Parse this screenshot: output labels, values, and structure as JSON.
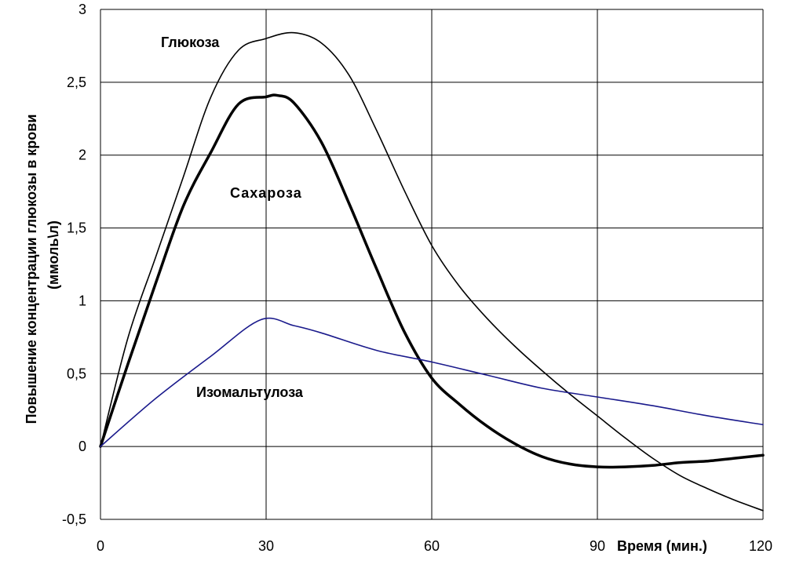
{
  "chart_data": {
    "type": "line",
    "title": "",
    "xlabel": "Время (мин.)",
    "ylabel_line1": "Повышение концентрации глюкозы  в крови",
    "ylabel_line2": "(ммоль\\л)",
    "xlim": [
      0,
      120
    ],
    "ylim": [
      -0.5,
      3
    ],
    "x_ticks": [
      "0",
      "30",
      "60",
      "90"
    ],
    "x_tick_values": [
      0,
      30,
      60,
      90
    ],
    "x_last_tick": "120",
    "y_ticks": [
      "-0,5",
      "0",
      "0,5",
      "1",
      "1,5",
      "2",
      "2,5",
      "3"
    ],
    "y_tick_values": [
      -0.5,
      0,
      0.5,
      1,
      1.5,
      2,
      2.5,
      3
    ],
    "grid": true,
    "series": [
      {
        "name": "Глюкоза",
        "color": "#000000",
        "weight": "thin",
        "x": [
          0,
          5,
          10,
          15,
          20,
          25,
          30,
          35,
          40,
          45,
          50,
          55,
          60,
          65,
          70,
          75,
          80,
          85,
          90,
          95,
          100,
          105,
          110,
          115,
          120
        ],
        "values": [
          0,
          0.75,
          1.3,
          1.85,
          2.4,
          2.72,
          2.8,
          2.84,
          2.77,
          2.55,
          2.17,
          1.76,
          1.38,
          1.1,
          0.88,
          0.69,
          0.52,
          0.36,
          0.21,
          0.06,
          -0.08,
          -0.2,
          -0.29,
          -0.37,
          -0.44
        ]
      },
      {
        "name": "Сахароза",
        "color": "#000000",
        "weight": "thick",
        "x": [
          0,
          5,
          10,
          15,
          20,
          25,
          30,
          32,
          35,
          40,
          45,
          50,
          55,
          60,
          65,
          70,
          75,
          80,
          85,
          90,
          95,
          100,
          105,
          110,
          115,
          120
        ],
        "values": [
          0,
          0.57,
          1.12,
          1.65,
          2.02,
          2.35,
          2.4,
          2.41,
          2.36,
          2.09,
          1.67,
          1.22,
          0.79,
          0.47,
          0.29,
          0.14,
          0.02,
          -0.07,
          -0.12,
          -0.14,
          -0.14,
          -0.13,
          -0.11,
          -0.1,
          -0.08,
          -0.06
        ]
      },
      {
        "name": "Изомальтулоза",
        "color": "#1a1a8c",
        "weight": "thin",
        "x": [
          0,
          10,
          20,
          29,
          35,
          40,
          50,
          60,
          70,
          80,
          90,
          100,
          110,
          120
        ],
        "values": [
          0,
          0.33,
          0.62,
          0.87,
          0.83,
          0.78,
          0.66,
          0.58,
          0.49,
          0.4,
          0.34,
          0.28,
          0.21,
          0.15
        ]
      }
    ]
  }
}
